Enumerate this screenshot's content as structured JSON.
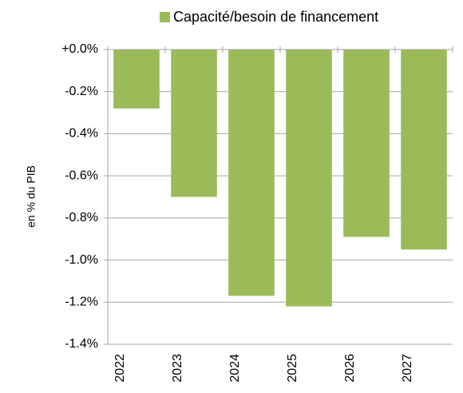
{
  "chart_data": {
    "type": "bar",
    "y_label": "en % du PIB",
    "categories": [
      "2022",
      "2023",
      "2024",
      "2025",
      "2026",
      "2027"
    ],
    "series": [
      {
        "name": "Capacité/besoin de financement",
        "color": "#9bbb59",
        "values": [
          -0.28,
          -0.7,
          -1.17,
          -1.22,
          -0.89,
          -0.95
        ]
      }
    ],
    "ylim": [
      -1.4,
      0
    ],
    "yticks": [
      {
        "value": 0,
        "label": "+0.0%"
      },
      {
        "value": -0.2,
        "label": "-0.2%"
      },
      {
        "value": -0.4,
        "label": "-0.4%"
      },
      {
        "value": -0.6,
        "label": "-0.6%"
      },
      {
        "value": -0.8,
        "label": "-0.8%"
      },
      {
        "value": -1.0,
        "label": "-1.0%"
      },
      {
        "value": -1.2,
        "label": "-1.2%"
      },
      {
        "value": -1.4,
        "label": "-1.4%"
      }
    ],
    "grid": true,
    "legend": "top"
  }
}
